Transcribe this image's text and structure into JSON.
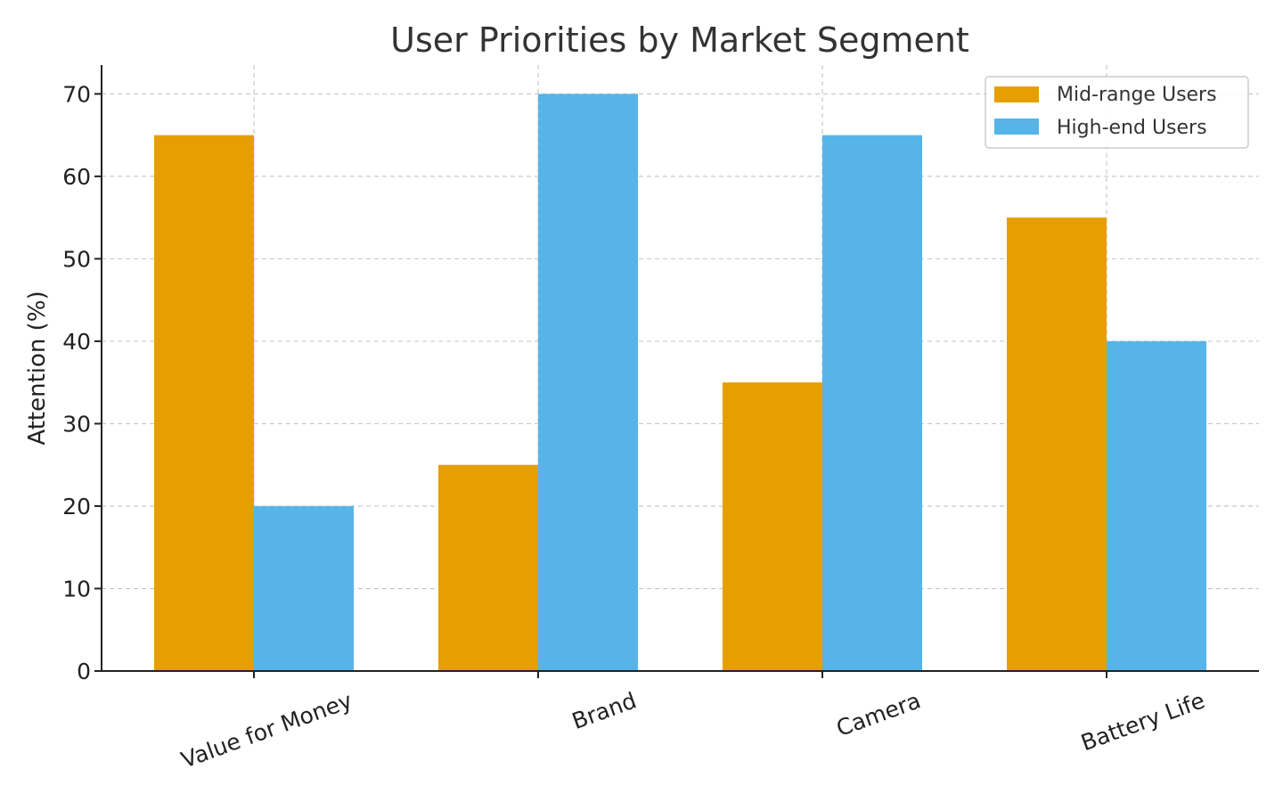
{
  "chart_data": {
    "type": "bar",
    "title": "User Priorities by Market Segment",
    "xlabel": "",
    "ylabel": "Attention (%)",
    "categories": [
      "Value for Money",
      "Brand",
      "Camera",
      "Battery Life"
    ],
    "series": [
      {
        "name": "Mid-range Users",
        "values": [
          65,
          25,
          35,
          55
        ],
        "color": "#E69F00"
      },
      {
        "name": "High-end Users",
        "values": [
          20,
          70,
          65,
          40
        ],
        "color": "#56B4E9"
      }
    ],
    "ylim": [
      0,
      73.5
    ],
    "yticks": [
      0,
      10,
      20,
      30,
      40,
      50,
      60,
      70
    ],
    "grid": true,
    "legend_position": "top-right"
  }
}
